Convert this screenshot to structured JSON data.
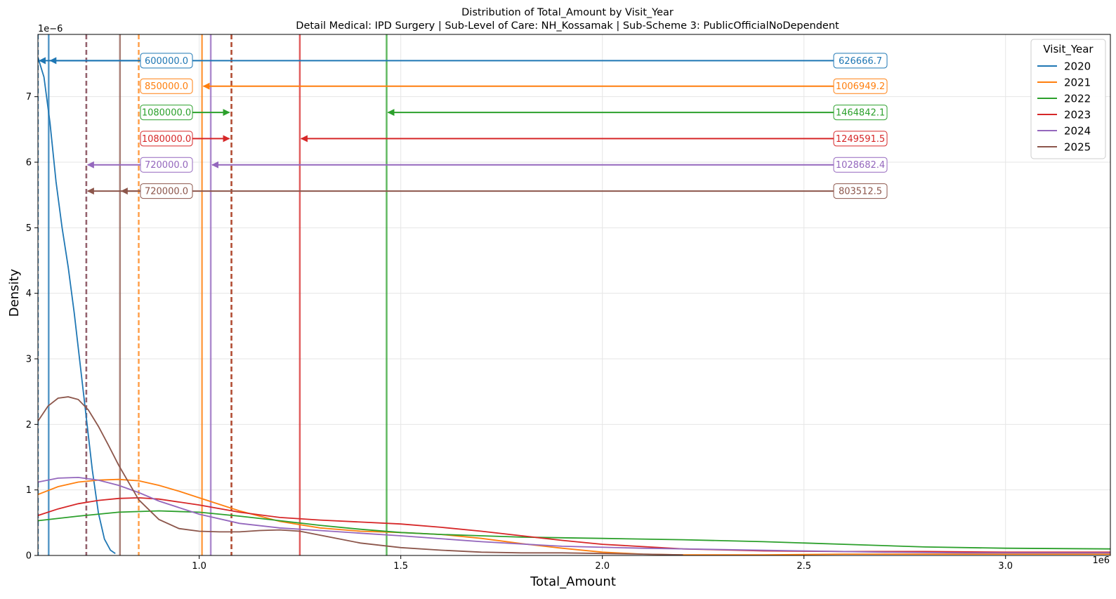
{
  "chart_data": {
    "type": "line",
    "title": "Distribution of Total_Amount by Visit_Year",
    "subtitle": "Detail Medical: IPD Surgery | Sub-Level of Care: NH_Kossamak | Sub-Scheme 3: PublicOfficialNoDependent",
    "xlabel": "Total_Amount",
    "ylabel": "Density",
    "x_offset_label": "1e6",
    "y_offset_label": "1e−6",
    "xlim": [
      600000,
      3260000
    ],
    "ylim": [
      0,
      7.95e-06
    ],
    "x_ticks": [
      {
        "value": 1000000,
        "label": "1.0"
      },
      {
        "value": 1500000,
        "label": "1.5"
      },
      {
        "value": 2000000,
        "label": "2.0"
      },
      {
        "value": 2500000,
        "label": "2.5"
      },
      {
        "value": 3000000,
        "label": "3.0"
      }
    ],
    "y_ticks": [
      {
        "value": 0,
        "label": "0"
      },
      {
        "value": 1e-06,
        "label": "1"
      },
      {
        "value": 2e-06,
        "label": "2"
      },
      {
        "value": 3e-06,
        "label": "3"
      },
      {
        "value": 4e-06,
        "label": "4"
      },
      {
        "value": 5e-06,
        "label": "5"
      },
      {
        "value": 6e-06,
        "label": "6"
      },
      {
        "value": 7e-06,
        "label": "7"
      }
    ],
    "grid": true,
    "legend": {
      "title": "Visit_Year",
      "position": "top-right"
    },
    "series": [
      {
        "name": "2020",
        "color": "#1f77b4",
        "mean": 626666.7,
        "median": 600000.0,
        "mean_label": "626666.7",
        "median_label": "600000.0",
        "arrow_y": 7.55e-06,
        "x": [
          600000,
          615000,
          630000,
          645000,
          660000,
          675000,
          690000,
          705000,
          720000,
          735000,
          750000,
          765000,
          780000,
          792000
        ],
        "y": [
          7.6e-06,
          7.3e-06,
          6.6e-06,
          5.7e-06,
          5e-06,
          4.4e-06,
          3.7e-06,
          2.9e-06,
          2.1e-06,
          1.3e-06,
          6.5e-07,
          2.5e-07,
          8e-08,
          3e-08
        ]
      },
      {
        "name": "2021",
        "color": "#ff7f0e",
        "mean": 1006949.2,
        "median": 850000.0,
        "mean_label": "1006949.2",
        "median_label": "850000.0",
        "arrow_y": 7.16e-06,
        "x": [
          600000,
          650000,
          700000,
          750000,
          800000,
          850000,
          900000,
          950000,
          1000000,
          1100000,
          1200000,
          1300000,
          1400000,
          1500000,
          1600000,
          1700000,
          1800000,
          1900000,
          2000000,
          2100000,
          2200000,
          2400000,
          2600000,
          2800000,
          3000000,
          3260000
        ],
        "y": [
          9.3e-07,
          1.05e-06,
          1.12e-06,
          1.15e-06,
          1.16e-06,
          1.14e-06,
          1.07e-06,
          9.8e-07,
          8.8e-07,
          6.8e-07,
          5.2e-07,
          4.2e-07,
          3.7e-07,
          3.5e-07,
          3.2e-07,
          2.6e-07,
          1.8e-07,
          1.1e-07,
          5e-08,
          2e-08,
          1e-08,
          1e-08,
          2e-08,
          2e-08,
          2e-08,
          2e-08
        ]
      },
      {
        "name": "2022",
        "color": "#2ca02c",
        "mean": 1464842.1,
        "median": 1080000.0,
        "mean_label": "1464842.1",
        "median_label": "1080000.0",
        "arrow_y": 6.76e-06,
        "x": [
          600000,
          700000,
          800000,
          900000,
          1000000,
          1100000,
          1200000,
          1300000,
          1400000,
          1500000,
          1600000,
          1700000,
          1800000,
          1900000,
          2000000,
          2200000,
          2400000,
          2600000,
          2800000,
          3000000,
          3260000
        ],
        "y": [
          5.3e-07,
          6e-07,
          6.6e-07,
          6.8e-07,
          6.6e-07,
          6e-07,
          5.3e-07,
          4.6e-07,
          4e-07,
          3.5e-07,
          3.2e-07,
          3e-07,
          2.8e-07,
          2.7e-07,
          2.6e-07,
          2.4e-07,
          2.1e-07,
          1.7e-07,
          1.3e-07,
          1.1e-07,
          1e-07
        ]
      },
      {
        "name": "2023",
        "color": "#d62728",
        "mean": 1249591.5,
        "median": 1080000.0,
        "mean_label": "1249591.5",
        "median_label": "1080000.0",
        "arrow_y": 6.36e-06,
        "x": [
          600000,
          650000,
          700000,
          750000,
          800000,
          850000,
          900000,
          1000000,
          1100000,
          1200000,
          1300000,
          1400000,
          1500000,
          1600000,
          1700000,
          1800000,
          1900000,
          2000000,
          2200000,
          2400000,
          2600000,
          2800000,
          3000000,
          3260000
        ],
        "y": [
          6.1e-07,
          7.1e-07,
          7.9e-07,
          8.4e-07,
          8.7e-07,
          8.8e-07,
          8.6e-07,
          7.7e-07,
          6.6e-07,
          5.8e-07,
          5.4e-07,
          5.1e-07,
          4.8e-07,
          4.3e-07,
          3.7e-07,
          3e-07,
          2.3e-07,
          1.7e-07,
          1e-07,
          7e-08,
          6e-08,
          6e-08,
          5e-08,
          5e-08
        ]
      },
      {
        "name": "2024",
        "color": "#9467bd",
        "mean": 1028682.4,
        "median": 720000.0,
        "mean_label": "1028682.4",
        "median_label": "720000.0",
        "arrow_y": 5.96e-06,
        "x": [
          600000,
          650000,
          700000,
          750000,
          800000,
          850000,
          900000,
          1000000,
          1100000,
          1200000,
          1300000,
          1400000,
          1500000,
          1700000,
          1900000,
          2100000,
          2300000,
          2500000,
          2700000,
          2900000,
          3100000,
          3260000
        ],
        "y": [
          1.12e-06,
          1.18e-06,
          1.19e-06,
          1.15e-06,
          1.07e-06,
          9.6e-07,
          8.3e-07,
          6.3e-07,
          4.9e-07,
          4.2e-07,
          3.8e-07,
          3.4e-07,
          3e-07,
          2.1e-07,
          1.4e-07,
          1.1e-07,
          9e-08,
          7e-08,
          5e-08,
          4e-08,
          4e-08,
          4e-08
        ]
      },
      {
        "name": "2025",
        "color": "#8c564b",
        "mean": 803512.5,
        "median": 720000.0,
        "mean_label": "803512.5",
        "median_label": "720000.0",
        "arrow_y": 5.56e-06,
        "x": [
          600000,
          625000,
          650000,
          675000,
          700000,
          725000,
          750000,
          775000,
          800000,
          850000,
          900000,
          950000,
          1000000,
          1050000,
          1100000,
          1150000,
          1200000,
          1250000,
          1300000,
          1400000,
          1500000,
          1600000,
          1700000,
          1800000,
          1900000,
          2000000,
          2100000,
          2200000
        ],
        "y": [
          2.05e-06,
          2.28e-06,
          2.4e-06,
          2.42e-06,
          2.38e-06,
          2.22e-06,
          1.97e-06,
          1.68e-06,
          1.38e-06,
          8.5e-07,
          5.5e-07,
          4.1e-07,
          3.7e-07,
          3.6e-07,
          3.6e-07,
          3.8e-07,
          3.9e-07,
          3.7e-07,
          3.1e-07,
          1.9e-07,
          1.2e-07,
          8e-08,
          5e-08,
          4e-08,
          4e-08,
          3e-08,
          2e-08,
          1e-08
        ]
      }
    ]
  }
}
